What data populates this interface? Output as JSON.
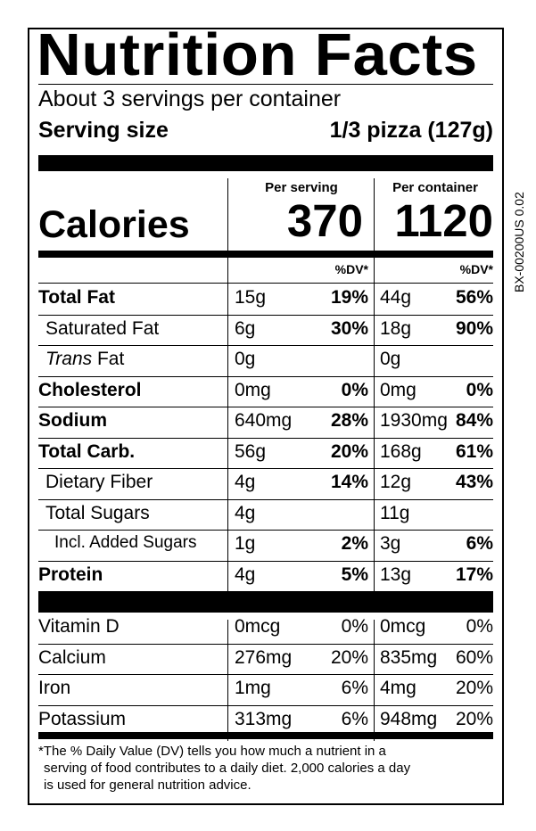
{
  "side_code": "BX-00200US 0.02",
  "title": "Nutrition Facts",
  "servings_per_container": "About 3 servings per container",
  "serving_size": {
    "label": "Serving size",
    "value": "1/3 pizza (127g)"
  },
  "columns": {
    "per_serving": "Per serving",
    "per_container": "Per container"
  },
  "calories": {
    "label": "Calories",
    "per_serving": "370",
    "per_container": "1120"
  },
  "dv_header": "%DV*",
  "nutrients": [
    {
      "name": "Total Fat",
      "bold": true,
      "serving_amount": "15g",
      "serving_dv": "19%",
      "container_amount": "44g",
      "container_dv": "56%"
    },
    {
      "name": "Saturated Fat",
      "bold": false,
      "serving_amount": "6g",
      "serving_dv": "30%",
      "container_amount": "18g",
      "container_dv": "90%"
    },
    {
      "name_italic": "Trans",
      "name": " Fat",
      "bold": false,
      "serving_amount": "0g",
      "serving_dv": "",
      "container_amount": "0g",
      "container_dv": ""
    },
    {
      "name": "Cholesterol",
      "bold": true,
      "serving_amount": "0mg",
      "serving_dv": "0%",
      "container_amount": "0mg",
      "container_dv": "0%"
    },
    {
      "name": "Sodium",
      "bold": true,
      "serving_amount": "640mg",
      "serving_dv": "28%",
      "container_amount": "1930mg",
      "container_dv": "84%"
    },
    {
      "name": "Total Carb.",
      "bold": true,
      "serving_amount": "56g",
      "serving_dv": "20%",
      "container_amount": "168g",
      "container_dv": "61%"
    },
    {
      "name": "Dietary Fiber",
      "bold": false,
      "serving_amount": "4g",
      "serving_dv": "14%",
      "container_amount": "12g",
      "container_dv": "43%"
    },
    {
      "name": "Total Sugars",
      "bold": false,
      "serving_amount": "4g",
      "serving_dv": "",
      "container_amount": "11g",
      "container_dv": ""
    },
    {
      "name": "Incl. Added Sugars",
      "bold": false,
      "serving_amount": "1g",
      "serving_dv": "2%",
      "container_amount": "3g",
      "container_dv": "6%"
    },
    {
      "name": "Protein",
      "bold": true,
      "serving_amount": "4g",
      "serving_dv": "5%",
      "container_amount": "13g",
      "container_dv": "17%"
    }
  ],
  "vitamins": [
    {
      "name": "Vitamin D",
      "serving_amount": "0mcg",
      "serving_dv": "0%",
      "container_amount": "0mcg",
      "container_dv": "0%"
    },
    {
      "name": "Calcium",
      "serving_amount": "276mg",
      "serving_dv": "20%",
      "container_amount": "835mg",
      "container_dv": "60%"
    },
    {
      "name": "Iron",
      "serving_amount": "1mg",
      "serving_dv": "6%",
      "container_amount": "4mg",
      "container_dv": "20%"
    },
    {
      "name": "Potassium",
      "serving_amount": "313mg",
      "serving_dv": "6%",
      "container_amount": "948mg",
      "container_dv": "20%"
    }
  ],
  "footnote": [
    "*The % Daily Value (DV) tells you how much a nutrient in a",
    "serving of food contributes to a daily diet. 2,000 calories a day",
    "is used for general nutrition advice."
  ]
}
